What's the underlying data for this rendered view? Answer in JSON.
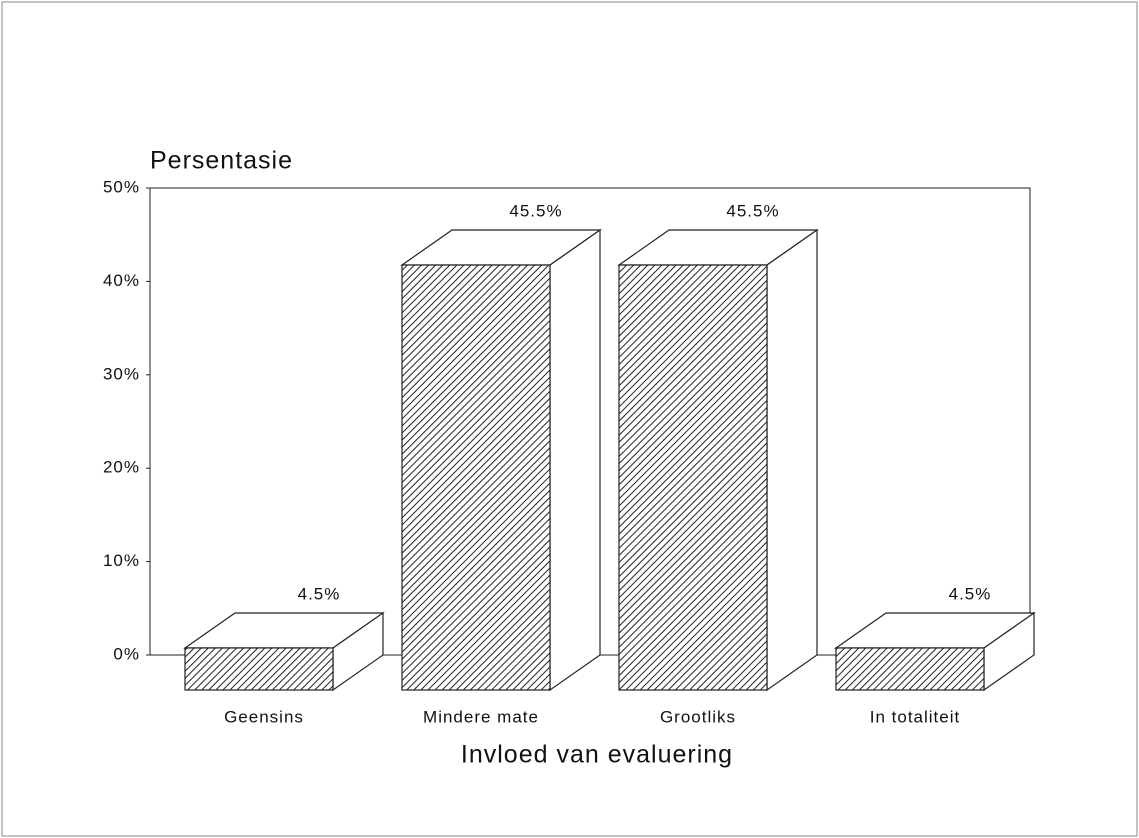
{
  "chart_data": {
    "type": "bar3d",
    "y_label": "Persentasie",
    "x_label": "Invloed van evaluering",
    "categories": [
      "Geensins",
      "Mindere mate",
      "Grootliks",
      "In totaliteit"
    ],
    "values": [
      4.5,
      45.5,
      45.5,
      4.5
    ],
    "value_labels": [
      "4.5%",
      "45.5%",
      "45.5%",
      "4.5%"
    ],
    "color": "#222222",
    "ylim": [
      0,
      50
    ],
    "yticks": [
      {
        "value": 0,
        "label": "0%"
      },
      {
        "value": 10,
        "label": "10%"
      },
      {
        "value": 20,
        "label": "20%"
      },
      {
        "value": 30,
        "label": "30%"
      },
      {
        "value": 40,
        "label": "40%"
      },
      {
        "value": 50,
        "label": "50%"
      }
    ]
  }
}
